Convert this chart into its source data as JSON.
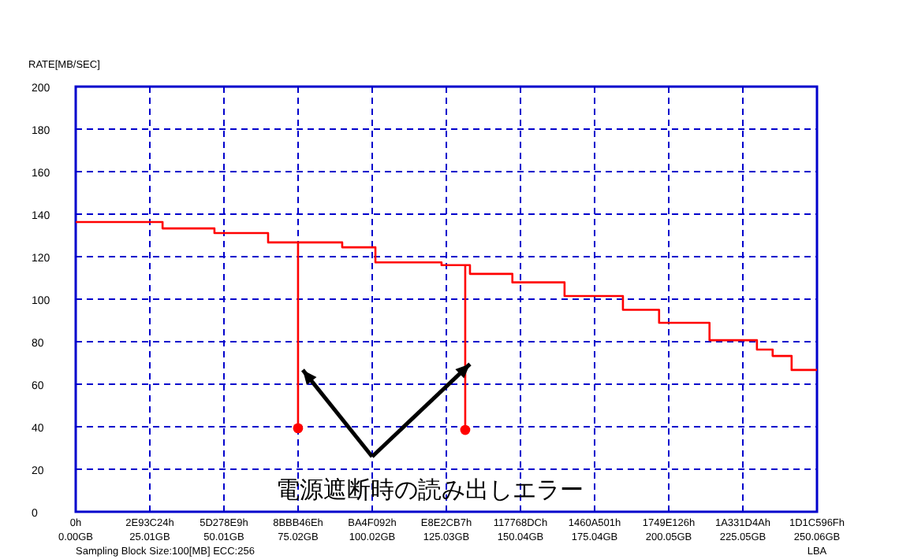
{
  "chart_data": {
    "type": "step",
    "ylabel": "RATE[MB/SEC]",
    "xlabel": "LBA",
    "xlim": [
      0,
      250.06
    ],
    "ylim": [
      0,
      200
    ],
    "xticks": [
      {
        "value": 0,
        "label": "0.00GB"
      },
      {
        "value": 25.01,
        "label": "25.01GB"
      },
      {
        "value": 50.01,
        "label": "50.01GB"
      },
      {
        "value": 75.02,
        "label": "75.02GB"
      },
      {
        "value": 100.02,
        "label": "100.02GB"
      },
      {
        "value": 125.03,
        "label": "125.03GB"
      },
      {
        "value": 150.04,
        "label": "150.04GB"
      },
      {
        "value": 175.04,
        "label": "175.04GB"
      },
      {
        "value": 200.05,
        "label": "200.05GB"
      },
      {
        "value": 225.05,
        "label": "225.05GB"
      },
      {
        "value": 250.06,
        "label": "250.06GB"
      }
    ],
    "yticks": [
      0,
      20,
      40,
      60,
      80,
      100,
      120,
      140,
      160,
      180,
      200
    ],
    "grid": true,
    "line_style": "solid",
    "series": [
      {
        "color": "#ff0000",
        "marker": "none",
        "x": [
          0,
          29.3,
          46.8,
          64.9,
          89.9,
          101.1,
          123.4,
          133,
          147.3,
          164.9,
          184.6,
          196.8,
          213.8,
          229.8,
          235.1,
          241.5,
          250.06
        ],
        "values": [
          136.3,
          133.3,
          131.1,
          126.7,
          124.4,
          117.3,
          116,
          111.9,
          107.9,
          101.5,
          95,
          88.9,
          80.7,
          76.3,
          73.3,
          66.7,
          66.7
        ]
      },
      {
        "type": "line",
        "color": "#ff0000",
        "marker": "none",
        "x": [
          75,
          75
        ],
        "values": [
          126.7,
          39.3
        ]
      },
      {
        "type": "line",
        "color": "#ff0000",
        "marker": "none",
        "x": [
          131.4,
          131.4
        ],
        "values": [
          116,
          38.5
        ]
      },
      {
        "type": "scatter",
        "color": "#ff0000",
        "marker": "circle",
        "x": [
          75,
          131.4
        ],
        "values": [
          39.3,
          38.5
        ]
      }
    ],
    "annotations": [
      {
        "text": "電源遮断時の読み出しエラー",
        "x": 75,
        "y": 66.7
      },
      "Sampling Block Size:100[MB] ECC:256",
      "0h",
      "2E93C24h",
      "5D278E9h",
      "8BBB46Eh",
      "BA4F092h",
      "E8E2CB7h",
      "117768DCh",
      "1460A501h",
      "1749E126h",
      "1A331D4Ah",
      "1D1C596Fh"
    ]
  }
}
